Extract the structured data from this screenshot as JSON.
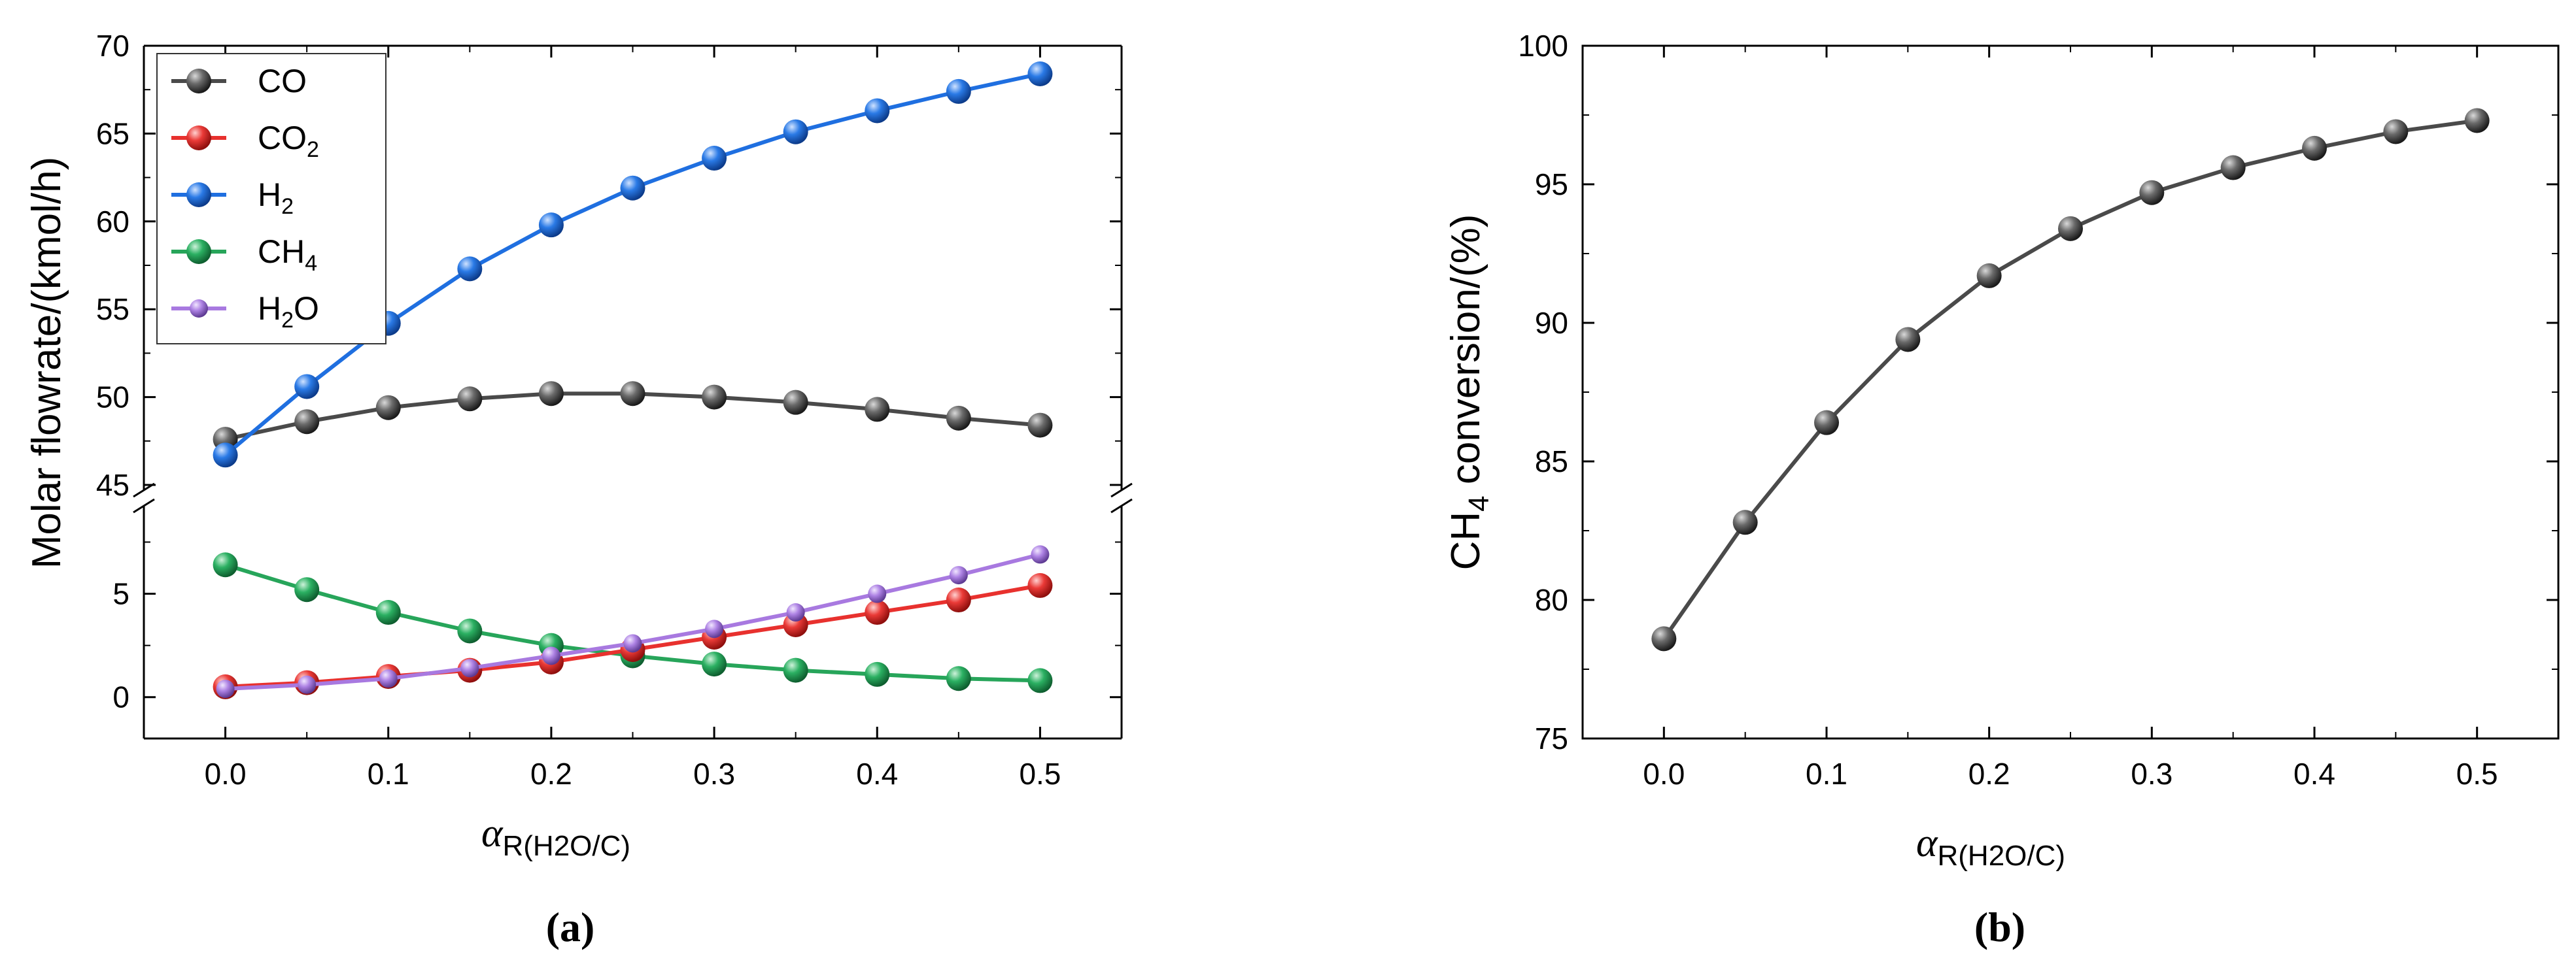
{
  "figure": {
    "panel_a_label": "(a)",
    "panel_b_label": "(b)"
  },
  "chart_data": [
    {
      "type": "line",
      "panel": "a",
      "x": [
        0.0,
        0.05,
        0.1,
        0.15,
        0.2,
        0.25,
        0.3,
        0.35,
        0.4,
        0.45,
        0.5
      ],
      "series": [
        {
          "name": "CO",
          "legend_main": "CO",
          "legend_sub": "",
          "legend_tail": "",
          "color": "#4a4a4a",
          "marker": "large",
          "values": [
            47.6,
            48.6,
            49.4,
            49.9,
            50.2,
            50.2,
            50.0,
            49.7,
            49.3,
            48.8,
            48.4
          ]
        },
        {
          "name": "CO2",
          "legend_main": "CO",
          "legend_sub": "2",
          "legend_tail": "",
          "color": "#e8312e",
          "marker": "large",
          "values": [
            0.5,
            0.7,
            1.0,
            1.3,
            1.7,
            2.3,
            2.9,
            3.5,
            4.1,
            4.7,
            5.4
          ]
        },
        {
          "name": "H2",
          "legend_main": "H",
          "legend_sub": "2",
          "legend_tail": "",
          "color": "#1f6fe0",
          "marker": "large",
          "values": [
            46.7,
            50.6,
            54.2,
            57.3,
            59.8,
            61.9,
            63.6,
            65.1,
            66.3,
            67.4,
            68.4
          ]
        },
        {
          "name": "CH4",
          "legend_main": "CH",
          "legend_sub": "4",
          "legend_tail": "",
          "color": "#27a55a",
          "marker": "large",
          "values": [
            6.4,
            5.2,
            4.1,
            3.2,
            2.5,
            2.0,
            1.6,
            1.3,
            1.1,
            0.9,
            0.8
          ]
        },
        {
          "name": "H2O",
          "legend_main": "H",
          "legend_sub": "2",
          "legend_tail": "O",
          "color": "#a879e0",
          "marker": "small",
          "values": [
            0.4,
            0.6,
            0.9,
            1.4,
            2.0,
            2.6,
            3.3,
            4.1,
            5.0,
            5.9,
            6.9
          ]
        }
      ],
      "ylabel": "Molar flowrate/(kmol/h)",
      "xlabel_symbol": "α",
      "xlabel_sub": "R(H2O/C)",
      "xlim": [
        -0.05,
        0.55
      ],
      "ylim_upper": [
        45,
        70
      ],
      "ylim_lower": [
        -2,
        9
      ],
      "axis_break": true,
      "xticks": [
        "0.0",
        "0.1",
        "0.2",
        "0.3",
        "0.4",
        "0.5"
      ],
      "yticks_upper": [
        "45",
        "50",
        "55",
        "60",
        "65",
        "70"
      ],
      "yticks_lower": [
        "0",
        "5"
      ],
      "legend_position": "top-left",
      "grid": false
    },
    {
      "type": "line",
      "panel": "b",
      "x": [
        0.0,
        0.05,
        0.1,
        0.15,
        0.2,
        0.25,
        0.3,
        0.35,
        0.4,
        0.45,
        0.5
      ],
      "series": [
        {
          "name": "CH4 conversion",
          "color": "#4a4a4a",
          "values": [
            78.6,
            82.8,
            86.4,
            89.4,
            91.7,
            93.4,
            94.7,
            95.6,
            96.3,
            96.9,
            97.3
          ]
        }
      ],
      "ylabel_main": "CH",
      "ylabel_sub": "4",
      "ylabel_tail": " conversion/(%)",
      "xlabel_symbol": "α",
      "xlabel_sub": "R(H2O/C)",
      "xlim": [
        -0.05,
        0.55
      ],
      "ylim": [
        75,
        100
      ],
      "xticks": [
        "0.0",
        "0.1",
        "0.2",
        "0.3",
        "0.4",
        "0.5"
      ],
      "yticks": [
        "75",
        "80",
        "85",
        "90",
        "95",
        "100"
      ],
      "grid": false
    }
  ]
}
